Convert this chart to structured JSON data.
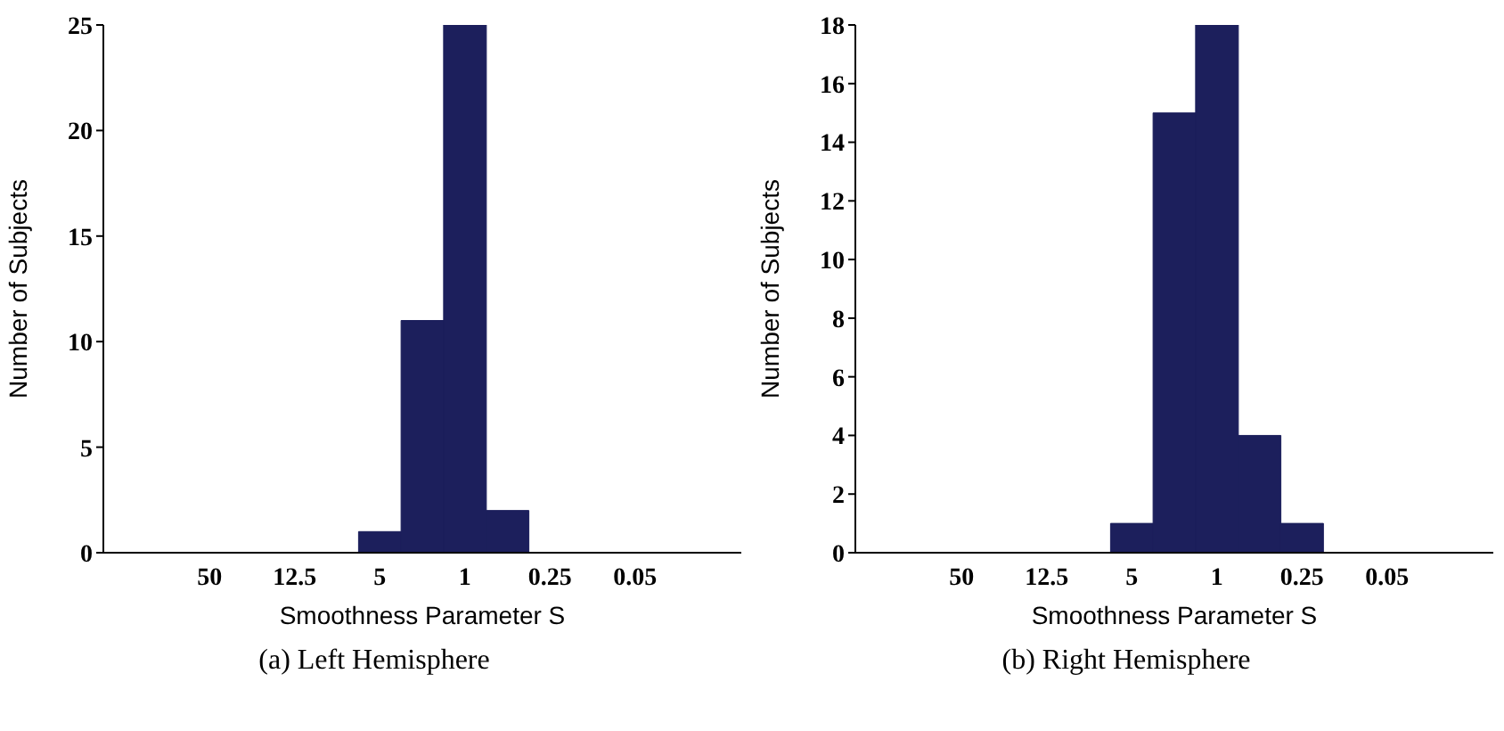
{
  "chart_data": [
    {
      "type": "bar",
      "title": "(a) Left Hemisphere",
      "xlabel": "Smoothness Parameter S",
      "ylabel": "Number of Subjects",
      "categories": [
        null,
        null,
        "50",
        null,
        "12.5",
        null,
        "5",
        null,
        "1",
        null,
        "0.25",
        null,
        "0.05",
        null,
        null
      ],
      "values": [
        0,
        0,
        0,
        0,
        0,
        0,
        1,
        11,
        25,
        2,
        0,
        0,
        0,
        0,
        0
      ],
      "color": "#1c1f5c",
      "ylim": [
        0,
        25
      ],
      "yticks": [
        0,
        5,
        10,
        15,
        20,
        25
      ]
    },
    {
      "type": "bar",
      "title": "(b) Right Hemisphere",
      "xlabel": "Smoothness Parameter S",
      "ylabel": "Number of Subjects",
      "categories": [
        null,
        null,
        "50",
        null,
        "12.5",
        null,
        "5",
        null,
        "1",
        null,
        "0.25",
        null,
        "0.05",
        null,
        null
      ],
      "values": [
        0,
        0,
        0,
        0,
        0,
        0,
        1,
        15,
        18,
        4,
        1,
        0,
        0,
        0,
        0
      ],
      "color": "#1c1f5c",
      "ylim": [
        0,
        18
      ],
      "yticks": [
        0,
        2,
        4,
        6,
        8,
        10,
        12,
        14,
        16,
        18
      ]
    }
  ]
}
